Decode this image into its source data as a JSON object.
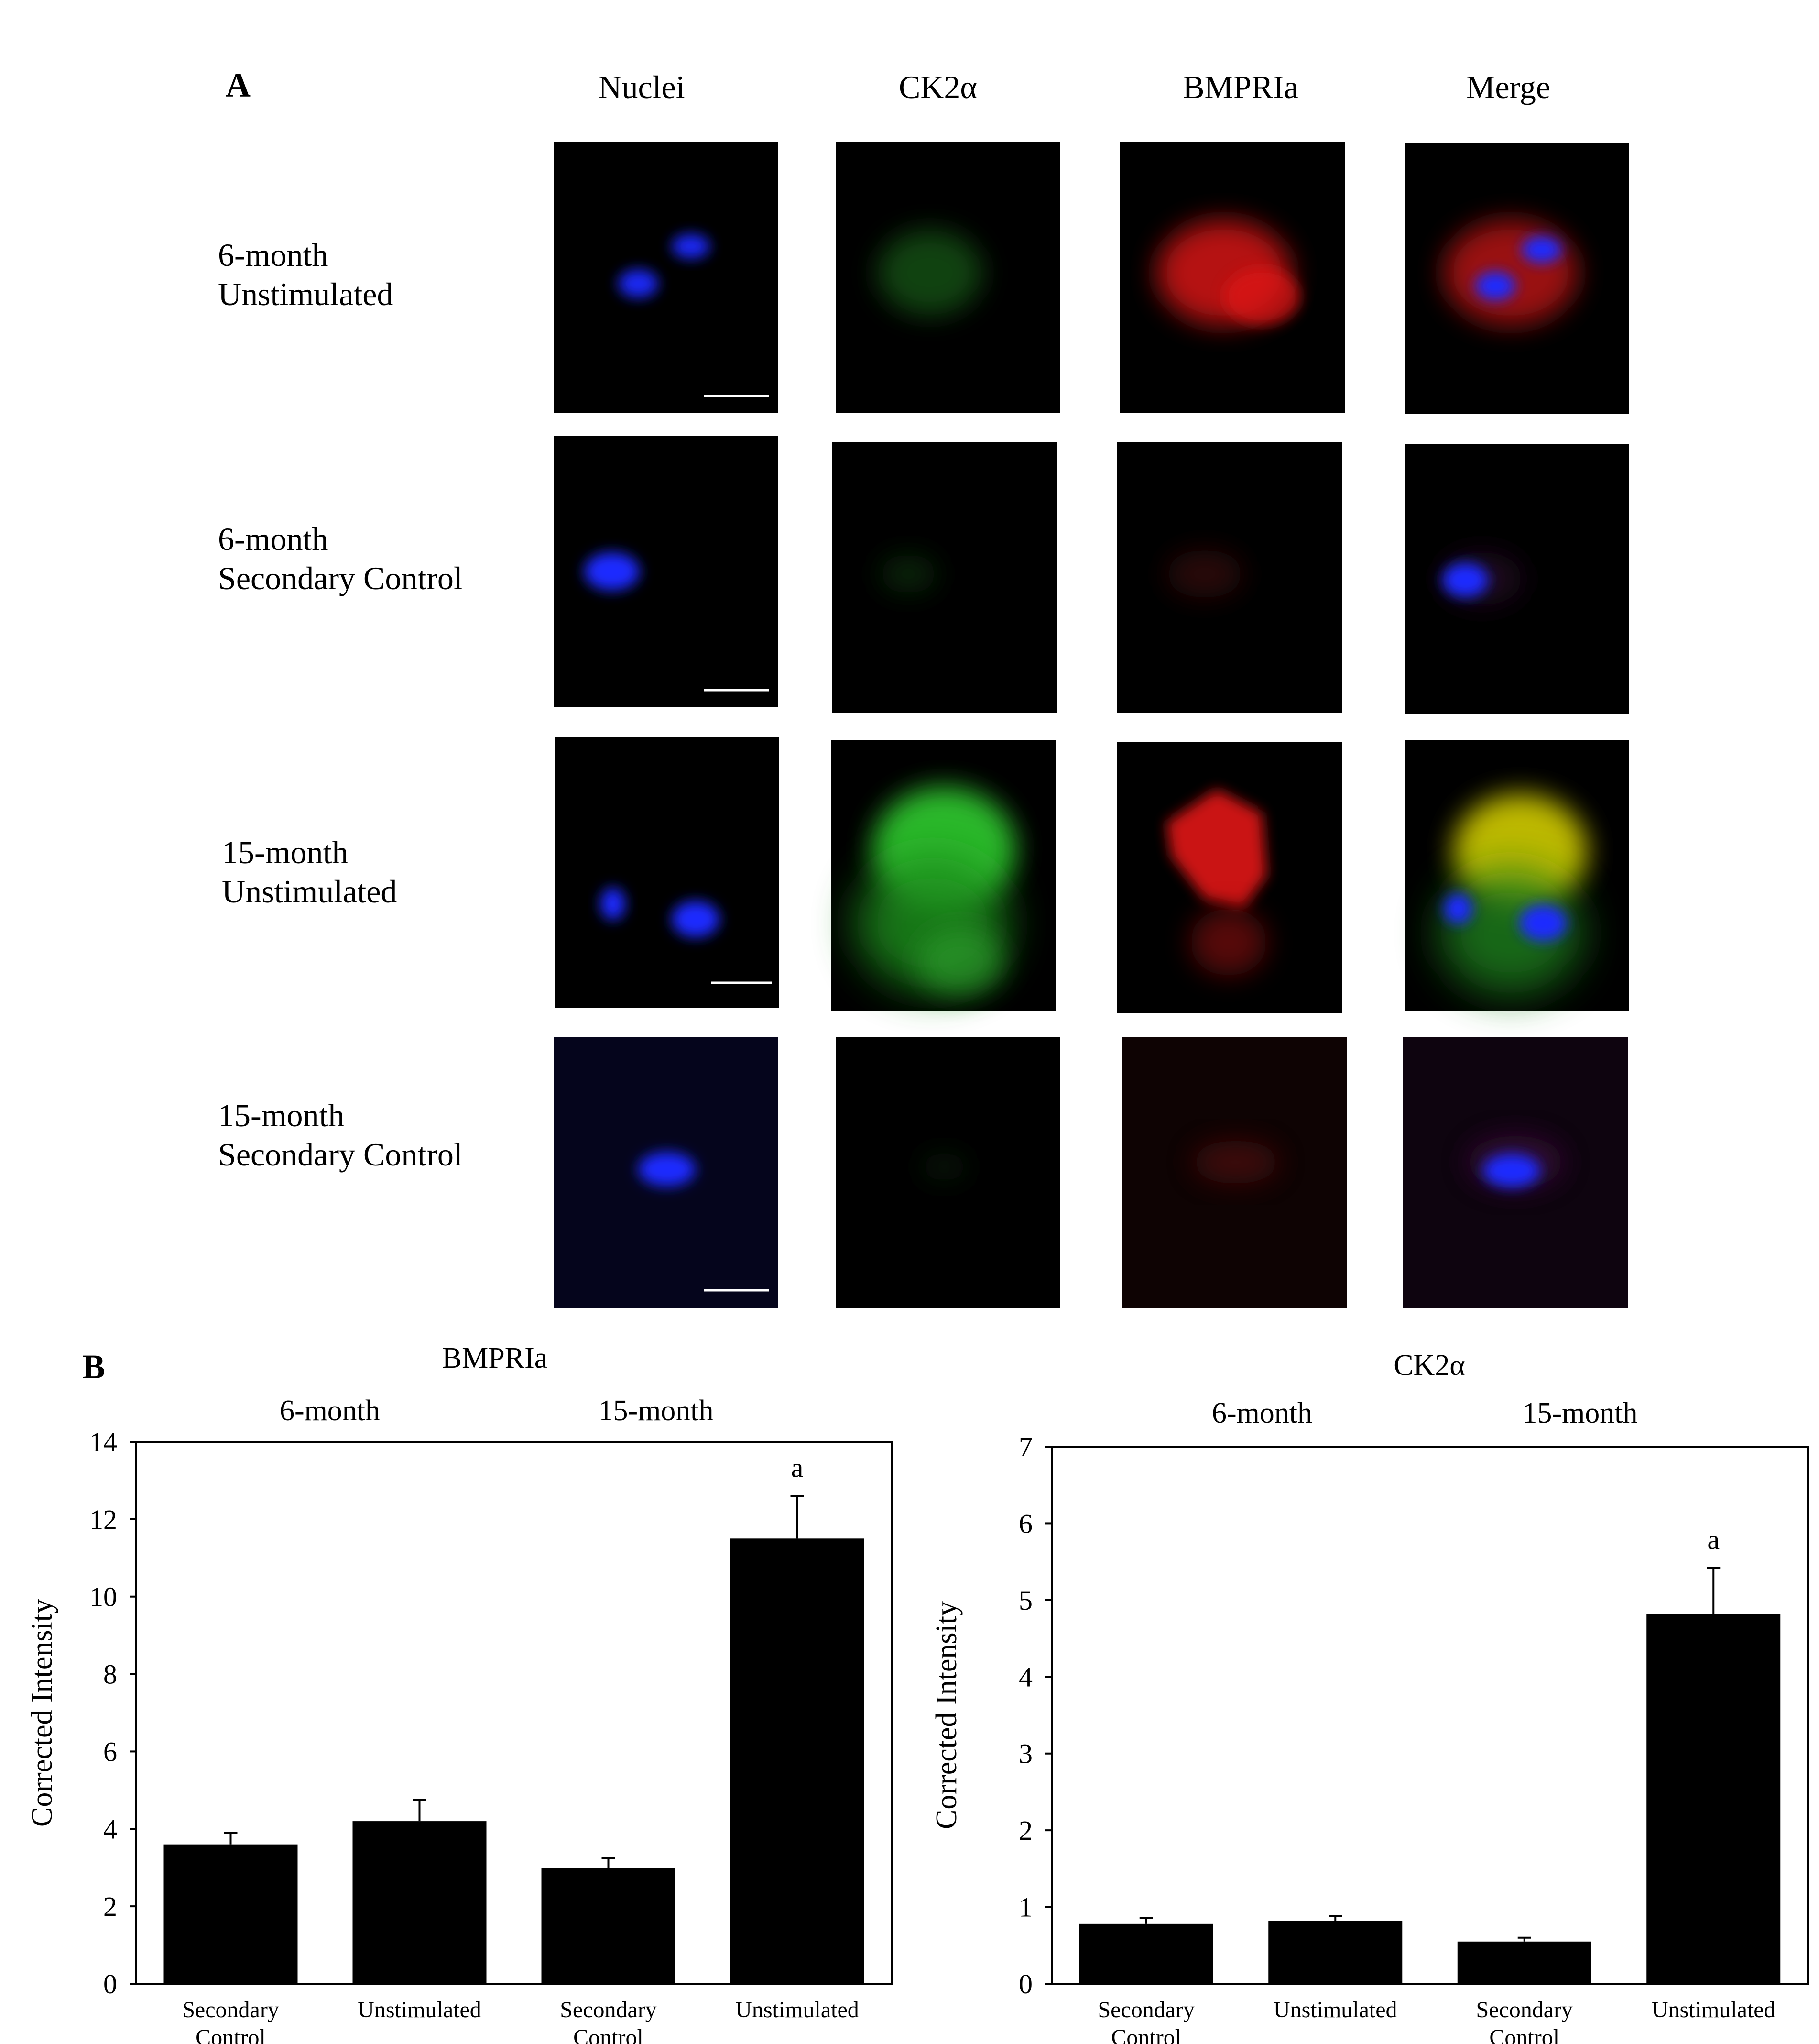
{
  "panel_a": {
    "letter": "A",
    "columns": [
      "Nuclei",
      "CK2α",
      "BMPRIa",
      "Merge"
    ],
    "rows": [
      {
        "line1": "6-month",
        "line2": "Unstimulated"
      },
      {
        "line1": "6-month",
        "line2": "Secondary Control"
      },
      {
        "line1": "15-month",
        "line2": "Unstimulated"
      },
      {
        "line1": "15-month",
        "line2": "Secondary Control"
      }
    ]
  },
  "panel_b": {
    "letter": "B"
  },
  "colors": {
    "bar": "#000000",
    "nuclei": "#1a2cff",
    "ck2a_stain": "#2fc22f",
    "bmpria_stain": "#d51414",
    "merge_overlap": "#c8c200",
    "image_background": "#000000"
  },
  "chart_data": [
    {
      "type": "bar",
      "title": "BMPRIa",
      "group_labels": [
        "6-month",
        "15-month"
      ],
      "categories": [
        "Secondary\nControl",
        "Unstimulated",
        "Secondary\nControl",
        "Unstimulated"
      ],
      "values": [
        3.6,
        4.2,
        3.0,
        11.5
      ],
      "errors": [
        0.3,
        0.55,
        0.25,
        1.1
      ],
      "annotations": [
        "",
        "",
        "",
        "a"
      ],
      "ylabel": "Corrected Intensity",
      "ylim": [
        0,
        14
      ],
      "yticks": [
        0,
        2,
        4,
        6,
        8,
        10,
        12,
        14
      ]
    },
    {
      "type": "bar",
      "title": "CK2α",
      "group_labels": [
        "6-month",
        "15-month"
      ],
      "categories": [
        "Secondary\nControl",
        "Unstimulated",
        "Secondary\nControl",
        "Unstimulated"
      ],
      "values": [
        0.78,
        0.82,
        0.55,
        4.82
      ],
      "errors": [
        0.08,
        0.06,
        0.05,
        0.6
      ],
      "annotations": [
        "",
        "",
        "",
        "a"
      ],
      "ylabel": "Corrected Intensity",
      "ylim": [
        0,
        7
      ],
      "yticks": [
        0,
        1,
        2,
        3,
        4,
        5,
        6,
        7
      ]
    }
  ]
}
